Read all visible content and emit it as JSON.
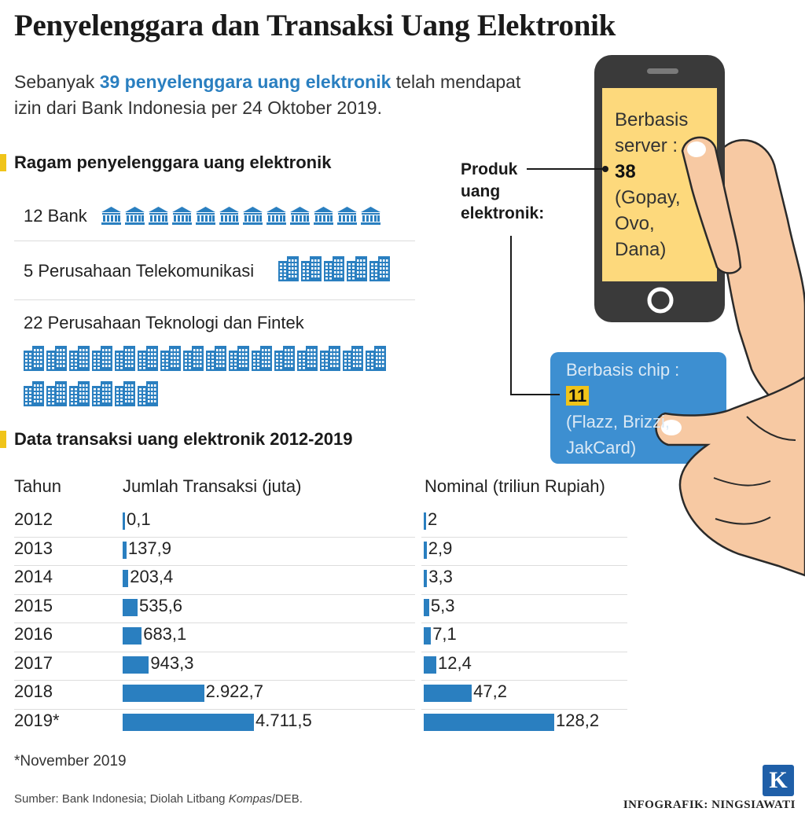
{
  "title": "Penyelenggara dan Transaksi Uang Elektronik",
  "intro": {
    "prefix": "Sebanyak ",
    "highlight": "39 penyelenggara uang elektronik",
    "suffix": " telah mendapat izin dari Bank Indonesia per 24 Oktober 2019."
  },
  "section1": {
    "title": "Ragam penyelenggara uang elektronik",
    "rows": [
      {
        "label": "12 Bank",
        "count": 12,
        "icon": "bank-icon"
      },
      {
        "label": "5 Perusahaan Telekomunikasi",
        "count": 5,
        "icon": "building-icon"
      },
      {
        "label": "22 Perusahaan Teknologi dan Fintek",
        "count": 22,
        "icon": "building-icon"
      }
    ]
  },
  "phone": {
    "label_line1": "Berbasis",
    "label_line2": "server :",
    "value": "38",
    "examples_line1": "(Gopay,",
    "examples_line2": "Ovo,",
    "examples_line3": "Dana)"
  },
  "produk": {
    "line1": "Produk",
    "line2": "uang",
    "line3": "elektronik:"
  },
  "card": {
    "label": "Berbasis chip :",
    "value": "11",
    "examples_line1": "(Flazz, Brizzi,",
    "examples_line2": "JakCard)"
  },
  "section2": {
    "title": "Data transaksi uang elektronik 2012-2019",
    "col_year": "Tahun",
    "col_count": "Jumlah Transaksi (juta)",
    "col_nominal": "Nominal (triliun Rupiah)"
  },
  "chart_data": {
    "type": "bar",
    "categories": [
      "2012",
      "2013",
      "2014",
      "2015",
      "2016",
      "2017",
      "2018",
      "2019*"
    ],
    "series": [
      {
        "name": "Jumlah Transaksi (juta)",
        "values": [
          0.1,
          137.9,
          203.4,
          535.6,
          683.1,
          943.3,
          2922.7,
          4711.5
        ],
        "labels": [
          "0,1",
          "137,9",
          "203,4",
          "535,6",
          "683,1",
          "943,3",
          "2.922,7",
          "4.711,5"
        ]
      },
      {
        "name": "Nominal (triliun Rupiah)",
        "values": [
          2,
          2.9,
          3.3,
          5.3,
          7.1,
          12.4,
          47.2,
          128.2
        ],
        "labels": [
          "2",
          "2,9",
          "3,3",
          "5,3",
          "7,1",
          "12,4",
          "47,2",
          "128,2"
        ]
      }
    ],
    "colors": {
      "bar": "#2a7fc0",
      "accent": "#f0c419"
    }
  },
  "footnote": "*November 2019",
  "source": {
    "prefix": "Sumber: Bank Indonesia; Diolah Litbang ",
    "italic": "Kompas",
    "suffix": "/DEB."
  },
  "credit": "INFOGRAFIK: NINGSIAWATI",
  "logo": "K"
}
